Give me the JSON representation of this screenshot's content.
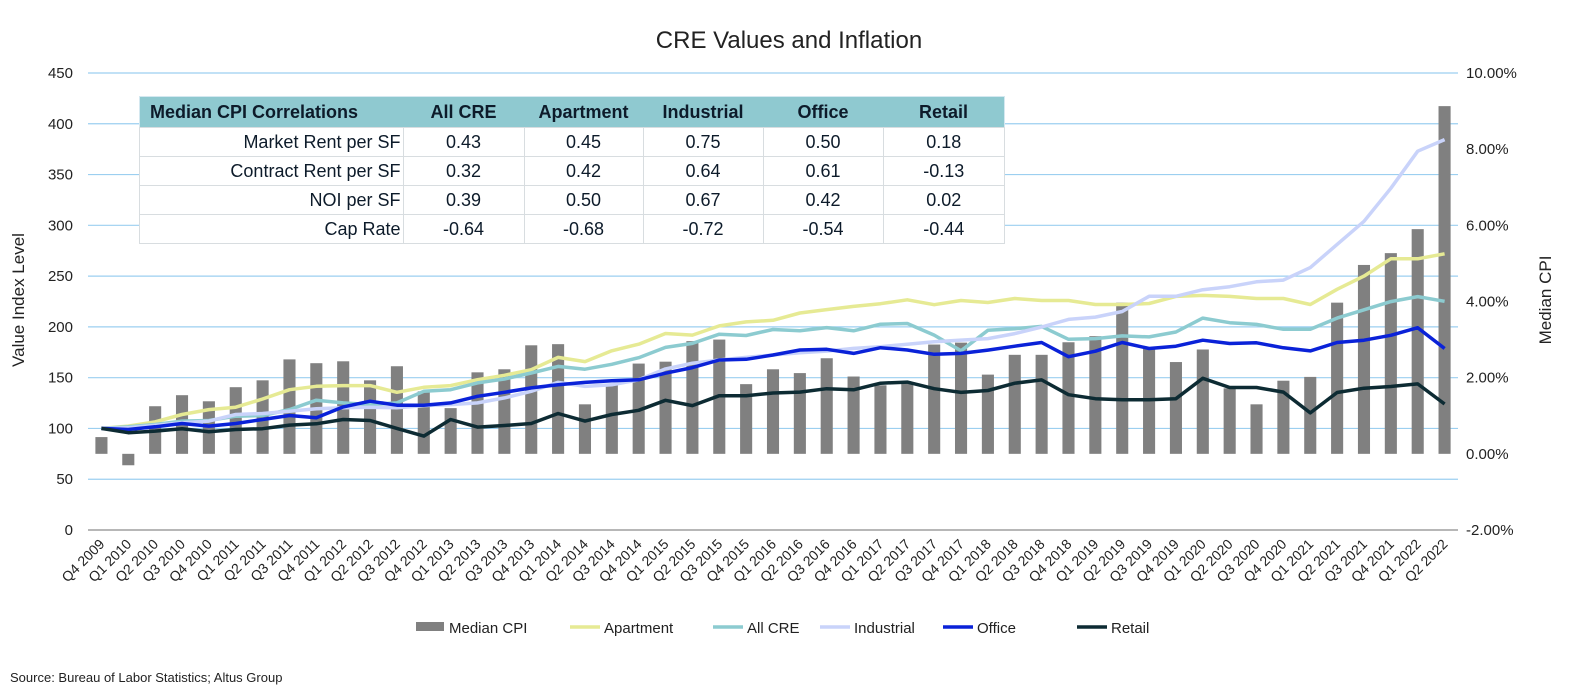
{
  "chart_data": {
    "type": "bar+line",
    "title": "CRE Values and Inflation",
    "ylabel": "Value Index Level",
    "y2label": "Median CPI",
    "ylim": [
      0,
      450
    ],
    "y2lim": [
      -2,
      10
    ],
    "yticks": [
      "0",
      "50",
      "100",
      "150",
      "200",
      "250",
      "300",
      "350",
      "400",
      "450"
    ],
    "y2ticks": [
      "-2.00%",
      "0.00%",
      "2.00%",
      "4.00%",
      "6.00%",
      "8.00%",
      "10.00%"
    ],
    "grid": true,
    "legend_position": "bottom",
    "categories": [
      "Q4 2009",
      "Q1 2010",
      "Q2 2010",
      "Q3 2010",
      "Q4 2010",
      "Q1 2011",
      "Q2 2011",
      "Q3 2011",
      "Q4 2011",
      "Q1 2012",
      "Q2 2012",
      "Q3 2012",
      "Q4 2012",
      "Q1 2013",
      "Q2 2013",
      "Q3 2013",
      "Q4 2013",
      "Q1 2014",
      "Q2 2014",
      "Q3 2014",
      "Q4 2014",
      "Q1 2015",
      "Q2 2015",
      "Q3 2015",
      "Q4 2015",
      "Q1 2016",
      "Q2 2016",
      "Q3 2016",
      "Q4 2016",
      "Q1 2017",
      "Q2 2017",
      "Q3 2017",
      "Q4 2017",
      "Q1 2018",
      "Q2 2018",
      "Q3 2018",
      "Q4 2018",
      "Q1 2019",
      "Q2 2019",
      "Q3 2019",
      "Q4 2019",
      "Q1 2020",
      "Q2 2020",
      "Q3 2020",
      "Q4 2020",
      "Q1 2021",
      "Q2 2021",
      "Q3 2021",
      "Q4 2021",
      "Q1 2022",
      "Q2 2022"
    ],
    "bar_series": {
      "name": "Median CPI",
      "axis": "right",
      "color": "#808080",
      "values": [
        0.44,
        -0.3,
        1.25,
        1.54,
        1.38,
        1.75,
        1.93,
        2.48,
        2.38,
        2.43,
        1.93,
        2.3,
        1.64,
        1.2,
        2.14,
        2.22,
        2.85,
        2.88,
        1.3,
        1.83,
        2.37,
        2.42,
        2.96,
        3.0,
        1.83,
        2.22,
        2.12,
        2.51,
        2.03,
        1.8,
        1.85,
        2.87,
        2.92,
        2.08,
        2.6,
        2.6,
        2.93,
        3.09,
        3.97,
        2.76,
        2.41,
        2.74,
        1.72,
        1.3,
        1.92,
        2.02,
        3.97,
        4.96,
        5.27,
        5.9,
        9.13
      ]
    },
    "series": [
      {
        "name": "Apartment",
        "color": "#e6ea94",
        "values": [
          100,
          102.3,
          106.5,
          113.7,
          118.6,
          120.9,
          129,
          138.2,
          141.5,
          142.2,
          142.2,
          135.6,
          140.5,
          142.2,
          148,
          152.3,
          157.8,
          170,
          165.8,
          176.5,
          183,
          193.5,
          191.9,
          201,
          204.9,
          206.5,
          213.7,
          217,
          220.2,
          222.8,
          226.7,
          221.8,
          226,
          224,
          228,
          226,
          226,
          222,
          222,
          223,
          230,
          231,
          230,
          228,
          228,
          222,
          237,
          250,
          267,
          267,
          272
        ]
      },
      {
        "name": "All CRE",
        "color": "#8ccbd0",
        "values": [
          100,
          101.6,
          103.9,
          107.2,
          107.8,
          112.1,
          112.7,
          118.6,
          127.8,
          125.2,
          123.5,
          125.2,
          136.6,
          138.2,
          144.8,
          148.7,
          154.6,
          161.1,
          158.3,
          163.2,
          169.7,
          179.8,
          183.7,
          192.8,
          191.5,
          197.4,
          196.1,
          199.3,
          196.1,
          202.6,
          203.3,
          191.9,
          176.5,
          196.6,
          198.2,
          200.5,
          187.8,
          188.5,
          191.1,
          190.1,
          195,
          208.7,
          204.1,
          202.5,
          197.6,
          197.6,
          208.7,
          216.8,
          224.9,
          229.8,
          225.2
        ]
      },
      {
        "name": "Industrial",
        "color": "#c9d3fa",
        "values": [
          100,
          100.7,
          103,
          105.6,
          107.2,
          113.7,
          114.7,
          117,
          119.3,
          120.3,
          120.9,
          120.3,
          122.5,
          123.5,
          125.2,
          130.1,
          136.6,
          145.4,
          141.4,
          143,
          147.9,
          158.6,
          164.2,
          167.4,
          170,
          172.3,
          174.6,
          176.2,
          178.8,
          180.5,
          183,
          185.3,
          187,
          188.5,
          193.4,
          199.9,
          207.4,
          209.6,
          215.2,
          230.1,
          230.1,
          236.6,
          239.6,
          244.4,
          246.1,
          258.4,
          281.2,
          304,
          336.5,
          373,
          384.4
        ]
      },
      {
        "name": "Office",
        "color": "#0a22d8",
        "values": [
          100,
          99,
          101.6,
          104.9,
          102.3,
          104.9,
          108.8,
          112.7,
          110.5,
          121.2,
          126.8,
          122.9,
          122.9,
          125.2,
          131.7,
          135.6,
          139.9,
          143.1,
          145.3,
          146.9,
          147.9,
          154.4,
          159.9,
          167.4,
          168.1,
          172.3,
          177.2,
          177.9,
          173.9,
          179.5,
          177.2,
          173,
          173.9,
          177.1,
          181,
          184.6,
          170.6,
          176.1,
          184.6,
          178.7,
          181,
          186.9,
          183.6,
          184.3,
          179.4,
          176.4,
          184.6,
          186.9,
          191.7,
          199.2,
          178.7
        ]
      },
      {
        "name": "Retail",
        "color": "#0d2b33",
        "values": [
          100,
          95.8,
          97.4,
          99.7,
          96.7,
          99,
          99.7,
          103.3,
          104.6,
          108.8,
          107.8,
          100,
          92.5,
          108.8,
          101.3,
          102.9,
          104.9,
          114.7,
          107.2,
          113.7,
          117.9,
          127.7,
          122.5,
          132.2,
          132.2,
          134.9,
          135.8,
          139.1,
          138.1,
          144.6,
          145.6,
          139.1,
          135.5,
          137.4,
          144.6,
          147.8,
          133.2,
          129.3,
          128.3,
          128.3,
          129.3,
          149.4,
          140.3,
          140.3,
          135.8,
          115.3,
          135.4,
          139.6,
          141.3,
          143.9,
          124.1
        ]
      }
    ],
    "source": "Source: Bureau of Labor Statistics; Altus Group"
  },
  "table": {
    "headers": [
      "Median CPI Correlations",
      "All CRE",
      "Apartment",
      "Industrial",
      "Office",
      "Retail"
    ],
    "header_color": "#8fc9d0",
    "rows": [
      [
        "Market Rent per SF",
        "0.43",
        "0.45",
        "0.75",
        "0.50",
        "0.18"
      ],
      [
        "Contract Rent per SF",
        "0.32",
        "0.42",
        "0.64",
        "0.61",
        "-0.13"
      ],
      [
        "NOI per SF",
        "0.39",
        "0.50",
        "0.67",
        "0.42",
        "0.02"
      ],
      [
        "Cap Rate",
        "-0.64",
        "-0.68",
        "-0.72",
        "-0.54",
        "-0.44"
      ]
    ]
  }
}
